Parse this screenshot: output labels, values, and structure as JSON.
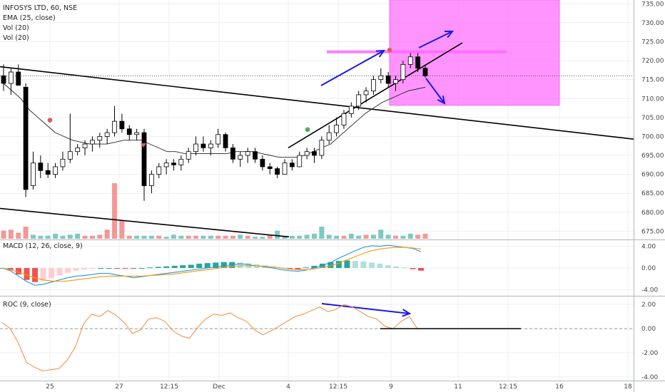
{
  "legend": {
    "symbol": "INFOSYS LTD, 60, NSE",
    "ema": "EMA (25, close)",
    "vol1": "Vol (20)",
    "vol2": "Vol (20)",
    "macd": "MACD (12, 26, close, 9)",
    "roc": "ROC (9, close)"
  },
  "colors": {
    "up": "#ffffff",
    "down": "#000000",
    "vol_up": "#26a69a",
    "vol_down": "#ef5350",
    "macd_line": "#2196f3",
    "signal_line": "#ff9800",
    "roc_line": "#f0954a",
    "box": "#ff66ff",
    "arrow": "#1a1ae6",
    "grid": "#eceff2"
  },
  "chart_data": [
    {
      "type": "candlestick",
      "title": "INFOSYS LTD, 60, NSE",
      "ylim": [
        673,
        736
      ],
      "y_ticks": [
        "735.00",
        "730.00",
        "725.00",
        "720.00",
        "715.00",
        "710.00",
        "705.00",
        "700.00",
        "695.00",
        "690.00",
        "685.00",
        "680.00",
        "675.00"
      ],
      "x_ticks": [
        "25",
        "27",
        "12:15",
        "Dec",
        "4",
        "12:15",
        "9",
        "11",
        "12:15",
        "16",
        "18"
      ],
      "ohlc": [
        [
          716,
          719,
          712,
          714
        ],
        [
          714,
          718,
          711,
          717
        ],
        [
          717,
          719,
          714,
          713.5
        ],
        [
          713,
          714,
          684,
          686
        ],
        [
          687,
          696,
          686,
          693
        ],
        [
          693,
          695,
          689,
          691
        ],
        [
          691,
          693,
          689,
          690
        ],
        [
          690,
          693,
          689,
          692
        ],
        [
          692,
          696,
          691,
          694
        ],
        [
          694,
          706,
          693,
          696
        ],
        [
          696,
          698,
          695,
          697
        ],
        [
          697,
          699,
          695,
          698
        ],
        [
          698,
          700,
          696,
          699
        ],
        [
          699,
          701,
          697,
          700
        ],
        [
          700,
          702,
          698,
          701
        ],
        [
          701,
          708,
          700,
          704
        ],
        [
          704,
          706,
          701,
          702
        ],
        [
          702,
          703,
          699,
          700.5
        ],
        [
          700.5,
          702,
          699,
          701
        ],
        [
          701,
          702,
          683,
          687
        ],
        [
          687,
          691,
          685,
          690
        ],
        [
          690,
          693,
          689,
          692
        ],
        [
          692,
          694,
          690,
          693
        ],
        [
          693,
          694,
          691,
          692.5
        ],
        [
          692.5,
          695,
          691,
          694
        ],
        [
          694,
          697,
          693,
          696
        ],
        [
          696,
          700,
          695,
          698
        ],
        [
          698,
          700,
          696,
          697
        ],
        [
          697,
          699,
          695,
          698
        ],
        [
          698,
          702,
          697,
          700.5
        ],
        [
          700.5,
          701,
          696,
          697
        ],
        [
          697,
          698,
          693,
          694
        ],
        [
          694,
          696,
          692,
          695
        ],
        [
          695,
          697,
          693,
          696
        ],
        [
          696,
          697,
          693,
          694
        ],
        [
          694,
          695,
          691,
          692
        ],
        [
          692,
          693,
          690,
          691.5
        ],
        [
          691.5,
          692,
          689,
          690
        ],
        [
          690,
          694,
          690,
          693
        ],
        [
          693,
          694,
          691,
          692
        ],
        [
          692,
          696,
          692,
          695
        ],
        [
          695,
          697,
          694,
          696
        ],
        [
          696,
          697,
          693,
          695
        ],
        [
          695,
          700,
          694,
          699
        ],
        [
          699,
          703,
          698,
          701
        ],
        [
          701,
          705,
          700,
          703
        ],
        [
          703,
          707,
          702,
          706
        ],
        [
          706,
          709,
          705,
          708
        ],
        [
          708,
          712,
          707,
          711
        ],
        [
          711,
          713,
          709,
          712
        ],
        [
          712,
          716,
          711,
          715
        ],
        [
          715,
          718,
          714,
          716
        ],
        [
          716,
          717,
          713,
          714
        ],
        [
          714,
          716,
          712,
          715
        ],
        [
          715,
          720,
          714,
          719
        ],
        [
          719,
          722,
          718,
          721
        ],
        [
          721,
          722,
          717,
          718
        ],
        [
          718,
          719,
          715.5,
          716
        ]
      ],
      "ema_25": [
        714,
        712,
        710,
        707,
        705,
        703,
        701,
        700,
        699,
        698.5,
        698,
        698,
        698,
        698.5,
        699,
        699,
        699,
        698,
        697,
        696,
        696,
        695.5,
        695.5,
        695.5,
        695.5,
        695.5,
        695.5,
        696,
        696,
        696,
        695.5,
        695,
        694.5,
        694.5,
        694.5,
        695,
        696,
        697,
        698,
        700,
        702,
        704,
        706,
        707.5,
        709,
        710,
        711,
        712,
        712.5,
        713
      ],
      "volume": [
        {
          "v": 8,
          "up": false
        },
        {
          "v": 9,
          "up": false
        },
        {
          "v": 6,
          "up": false
        },
        {
          "v": 12,
          "up": false
        },
        {
          "v": 4,
          "up": true
        },
        {
          "v": 3,
          "up": true
        },
        {
          "v": 3,
          "up": true
        },
        {
          "v": 5,
          "up": true
        },
        {
          "v": 3,
          "up": true
        },
        {
          "v": 4,
          "up": true
        },
        {
          "v": 5,
          "up": true
        },
        {
          "v": 3,
          "up": false
        },
        {
          "v": 3,
          "up": false
        },
        {
          "v": 4,
          "up": false
        },
        {
          "v": 9,
          "up": false
        },
        {
          "v": 55,
          "up": false
        },
        {
          "v": 18,
          "up": false
        },
        {
          "v": 3,
          "up": false
        },
        {
          "v": 3,
          "up": true
        },
        {
          "v": 3,
          "up": true
        },
        {
          "v": 3,
          "up": true
        },
        {
          "v": 3,
          "up": false
        },
        {
          "v": 2,
          "up": true
        },
        {
          "v": 4,
          "up": true
        },
        {
          "v": 3,
          "up": true
        },
        {
          "v": 3,
          "up": false
        },
        {
          "v": 3,
          "up": false
        },
        {
          "v": 3,
          "up": true
        },
        {
          "v": 3,
          "up": true
        },
        {
          "v": 3,
          "up": false
        },
        {
          "v": 3,
          "up": false
        },
        {
          "v": 3,
          "up": false
        },
        {
          "v": 4,
          "up": true
        },
        {
          "v": 3,
          "up": false
        },
        {
          "v": 2,
          "up": true
        },
        {
          "v": 2,
          "up": true
        },
        {
          "v": 4,
          "up": false
        },
        {
          "v": 8,
          "up": true
        },
        {
          "v": 3,
          "up": true
        },
        {
          "v": 3,
          "up": true
        },
        {
          "v": 3,
          "up": true
        },
        {
          "v": 4,
          "up": true
        },
        {
          "v": 5,
          "up": true
        },
        {
          "v": 12,
          "up": true
        },
        {
          "v": 4,
          "up": true
        },
        {
          "v": 3,
          "up": true
        },
        {
          "v": 3,
          "up": false
        },
        {
          "v": 5,
          "up": true
        },
        {
          "v": 3,
          "up": true
        },
        {
          "v": 4,
          "up": false
        },
        {
          "v": 4,
          "up": true
        },
        {
          "v": 9,
          "up": true
        },
        {
          "v": 4,
          "up": true
        },
        {
          "v": 3,
          "up": false
        },
        {
          "v": 3,
          "up": true
        },
        {
          "v": 5,
          "up": true
        },
        {
          "v": 4,
          "up": false
        },
        {
          "v": 5,
          "up": false
        }
      ]
    },
    {
      "type": "macd",
      "title": "MACD (12, 26, close, 9)",
      "ylim": [
        -5,
        5
      ],
      "y_ticks": [
        "4.00",
        "0.00",
        "-4.00"
      ],
      "macd": [
        0,
        -0.5,
        -1.5,
        -2.5,
        -3.2,
        -3.0,
        -2.6,
        -2.2,
        -1.8,
        -1.5,
        -1.4,
        -1.2,
        -1.0,
        -1.0,
        -1.3,
        -1.5,
        -1.8,
        -1.6,
        -1.4,
        -1.2,
        -1.0,
        -0.8,
        -0.6,
        -0.4,
        -0.2,
        0.0,
        0.2,
        0.4,
        0.6,
        0.8,
        0.6,
        0.4,
        0.2,
        0,
        -0.3,
        -0.5,
        -0.6,
        -0.4,
        0,
        0.5,
        1.0,
        1.8,
        2.5,
        3.2,
        3.8,
        4.1,
        4.0,
        4.2,
        4.0,
        3.8,
        3.6,
        3.0
      ],
      "signal": [
        0,
        -0.3,
        -0.8,
        -1.3,
        -1.8,
        -2.2,
        -2.4,
        -2.5,
        -2.4,
        -2.2,
        -2.0,
        -1.8,
        -1.6,
        -1.5,
        -1.5,
        -1.5,
        -1.5,
        -1.5,
        -1.4,
        -1.3,
        -1.2,
        -1.1,
        -0.9,
        -0.7,
        -0.5,
        -0.3,
        -0.1,
        0.1,
        0.3,
        0.4,
        0.4,
        0.4,
        0.3,
        0.2,
        0.0,
        -0.2,
        -0.3,
        -0.3,
        -0.2,
        0.1,
        0.4,
        0.9,
        1.5,
        2.1,
        2.7,
        3.2,
        3.5,
        3.7,
        3.8,
        3.8,
        3.7,
        3.5
      ],
      "histogram": [
        0,
        -0.4,
        -1.2,
        -2.2,
        -2.6,
        -2.4,
        -1.9,
        -1.4,
        -0.9,
        -0.5,
        -0.3,
        -0.2,
        0,
        0,
        -0.1,
        -0.1,
        -0.1,
        0,
        0.1,
        0.2,
        0.3,
        0.4,
        0.5,
        0.6,
        0.8,
        0.9,
        1.0,
        1.1,
        1.1,
        1.0,
        0.9,
        0.7,
        0.5,
        0.3,
        0.1,
        -0.2,
        -0.3,
        0.1,
        0.4,
        0.8,
        1.1,
        1.3,
        1.4,
        1.3,
        1.2,
        1.0,
        0.8,
        0.5,
        0.3,
        0.1,
        -0.2,
        -0.5
      ]
    },
    {
      "type": "line",
      "title": "ROC (9, close)",
      "ylim": [
        -4.3,
        2.6
      ],
      "y_ticks": [
        "2.00",
        "0.00",
        "-2.00",
        "-4.00"
      ],
      "roc": [
        0.5,
        0,
        -1.2,
        -2.8,
        -3.2,
        -3.5,
        -3.4,
        -3.3,
        -2.6,
        -1.5,
        0.4,
        1.2,
        1.0,
        1.5,
        1.1,
        0.5,
        -0.4,
        -0.1,
        0.8,
        0.9,
        0.6,
        -0.2,
        -0.6,
        -0.8,
        0.1,
        0.8,
        1.2,
        1.1,
        1.3,
        0.9,
        0.6,
        -0.1,
        -0.5,
        -0.2,
        0.2,
        0.6,
        1.0,
        1.2,
        1.5,
        1.8,
        1.4,
        1.6,
        2.0,
        1.8,
        1.4,
        1.0,
        0.8,
        0.2,
        0,
        0.6,
        1.0,
        0.0
      ]
    }
  ]
}
